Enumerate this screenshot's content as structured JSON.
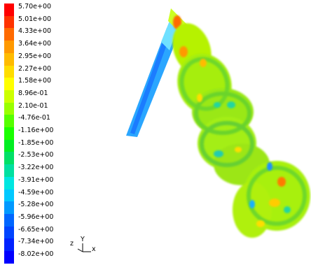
{
  "colorbar": {
    "labels": [
      "5.70e+00",
      "5.01e+00",
      "4.33e+00",
      "3.64e+00",
      "2.95e+00",
      "2.27e+00",
      "1.58e+00",
      "8.96e-01",
      "2.10e-01",
      "-4.76e-01",
      "-1.16e+00",
      "-1.85e+00",
      "-2.53e+00",
      "-3.22e+00",
      "-3.91e+00",
      "-4.59e+00",
      "-5.28e+00",
      "-5.96e+00",
      "-6.65e+00",
      "-7.34e+00",
      "-8.02e+00"
    ],
    "colors": [
      "#ff0000",
      "#ff3300",
      "#ff6a00",
      "#ff9900",
      "#ffbb00",
      "#ffdd00",
      "#ffff00",
      "#ccff00",
      "#99ff00",
      "#55ff00",
      "#1aff00",
      "#00ee22",
      "#00e066",
      "#00e0a0",
      "#00e6e0",
      "#00c8ff",
      "#0099ff",
      "#0066ff",
      "#0044ff",
      "#0022ff",
      "#0000ff"
    ]
  },
  "axes": {
    "z": "z",
    "y": "Y",
    "x": "x"
  }
}
